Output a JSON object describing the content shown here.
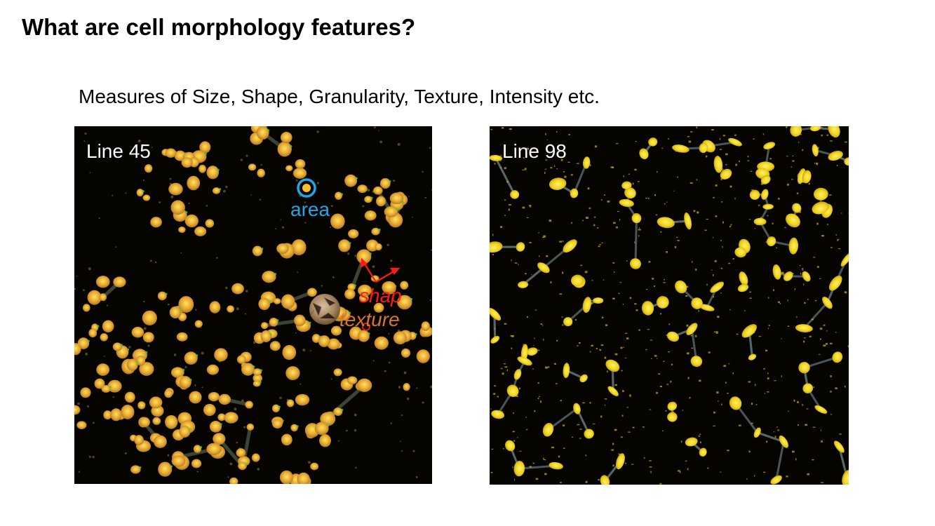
{
  "slide": {
    "title": "What are cell morphology features?",
    "subtitle": "Measures of Size, Shape, Granularity, Texture, Intensity etc."
  },
  "panels": {
    "left": {
      "label": "Line 45",
      "annotations": {
        "area": "area",
        "shape": "shap",
        "texture": "texture"
      }
    },
    "right": {
      "label": "Line 98"
    }
  },
  "colors": {
    "background": "#ffffff",
    "micrograph_background": "#050401",
    "cell_yellow": "#f2d21e",
    "cell_orange": "#d98a2a",
    "area_annotation": "#1ea6e8",
    "shape_annotation": "#ff1a1a",
    "texture_annotation": "#d8752a"
  }
}
